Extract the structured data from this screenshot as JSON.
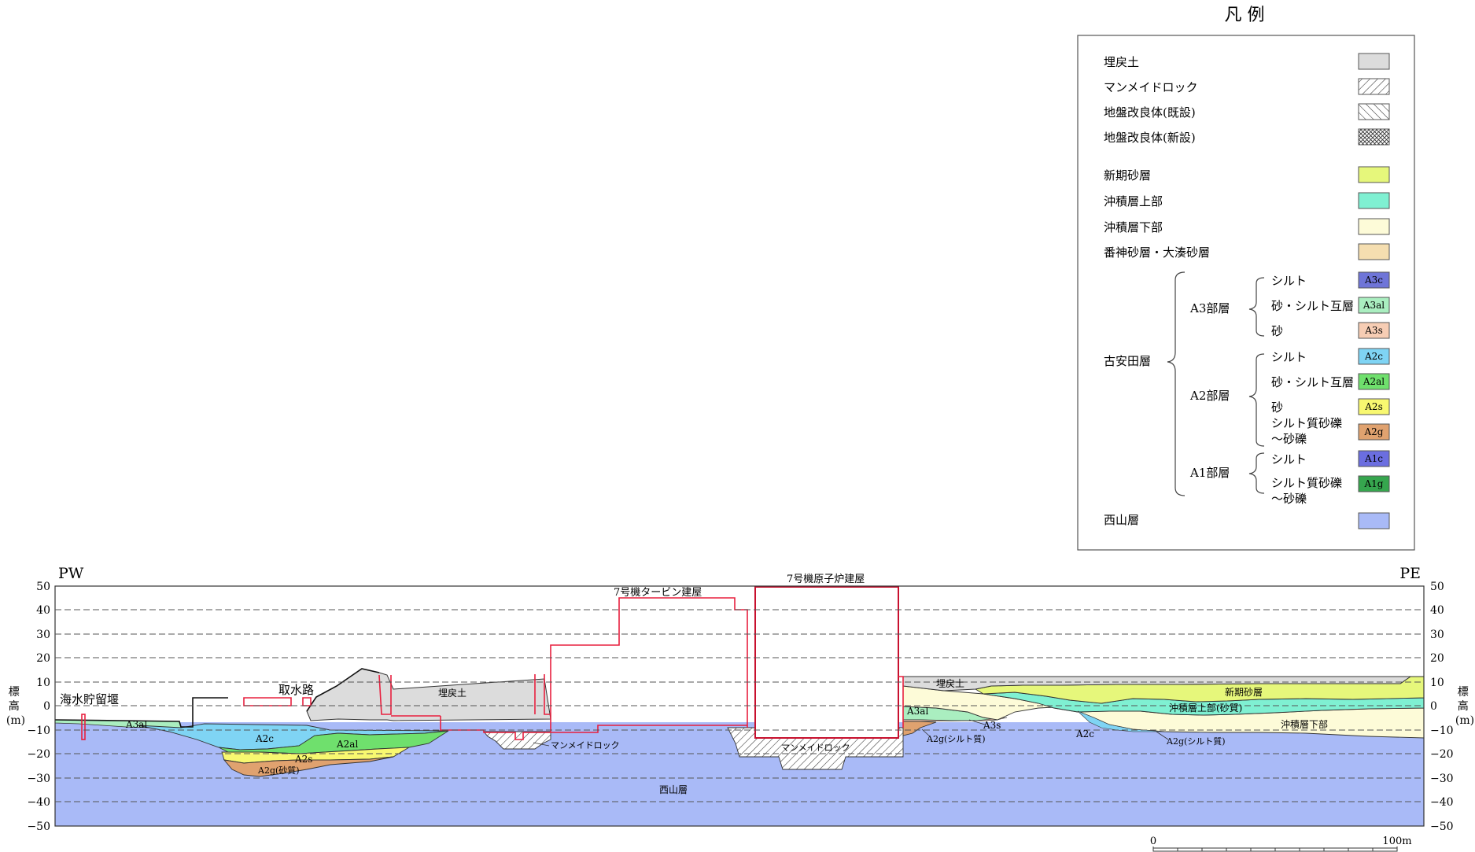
{
  "legend": {
    "title": "凡 例",
    "general_items": [
      {
        "label": "埋戻土",
        "pattern": "fill",
        "color": "#dcdcdc"
      },
      {
        "label": "マンメイドロック",
        "pattern": "hatch-single"
      },
      {
        "label": "地盤改良体(既設)",
        "pattern": "hatch-reverse"
      },
      {
        "label": "地盤改良体(新設)",
        "pattern": "hatch-cross"
      }
    ],
    "layer_items": [
      {
        "label": "新期砂層",
        "color": "#e6f77b"
      },
      {
        "label": "沖積層上部",
        "color": "#7ff0d2"
      },
      {
        "label": "沖積層下部",
        "color": "#fdfbd8"
      },
      {
        "label": "番神砂層・大湊砂層",
        "color": "#f5deb0"
      }
    ],
    "koyasuda": {
      "label": "古安田層",
      "groups": [
        {
          "label": "A3部層",
          "items": [
            {
              "label": "シルト",
              "code": "A3c",
              "color": "#6f75d8"
            },
            {
              "label": "砂・シルト互層",
              "code": "A3al",
              "color": "#aaeec0"
            },
            {
              "label": "砂",
              "code": "A3s",
              "color": "#f7cdb4"
            }
          ]
        },
        {
          "label": "A2部層",
          "items": [
            {
              "label": "シルト",
              "code": "A2c",
              "color": "#7fd4f4"
            },
            {
              "label": "砂・シルト互層",
              "code": "A2al",
              "color": "#6fe06d"
            },
            {
              "label": "砂",
              "code": "A2s",
              "color": "#f8f870"
            },
            {
              "label": "シルト質砂礫\n～砂礫",
              "code": "A2g",
              "color": "#e0a26f"
            }
          ]
        },
        {
          "label": "A1部層",
          "items": [
            {
              "label": "シルト",
              "code": "A1c",
              "color": "#6b6ee0"
            },
            {
              "label": "シルト質砂礫\n～砂礫",
              "code": "A1g",
              "color": "#36a64e"
            }
          ]
        }
      ]
    },
    "bedrock": {
      "label": "西山層",
      "color": "#a9baf7"
    }
  },
  "section": {
    "left_end": "PW",
    "right_end": "PE",
    "y_axis_label": "標\n高\n(m)",
    "y_ticks": [
      50,
      40,
      30,
      20,
      10,
      0,
      -10,
      -20,
      -30,
      -40,
      -50
    ],
    "y_tick_labels": [
      "50",
      "40",
      "30",
      "20",
      "10",
      "0",
      "−10",
      "−20",
      "−30",
      "−40",
      "−50"
    ],
    "structures": {
      "seawater_weir": "海水貯留堰",
      "intake": "取水路",
      "turbine": "7号機タービン建屋",
      "reactor": "7号機原子炉建屋"
    },
    "layer_labels": {
      "backfill_left": "埋戻土",
      "backfill_right": "埋戻土",
      "a3al_left": "A3al",
      "a2c_left": "A2c",
      "a2al_left": "A2al",
      "a2s_left": "A2s",
      "a2g_left": "A2g(砂質)",
      "manmade_1": "マンメイドロック",
      "manmade_2": "マンメイドロック",
      "nishiyama": "西山層",
      "a3al_right": "A3al",
      "a3s_right": "A3s",
      "a2g_right1": "A2g(シルト質)",
      "a2c_right": "A2c",
      "a2g_right2": "A2g(シルト質)",
      "shinki": "新期砂層",
      "chuseki_upper": "沖積層上部(砂質)",
      "chuseki_lower": "沖積層下部"
    },
    "scale_bar": {
      "zero": "0",
      "max": "100m"
    }
  },
  "colors": {
    "structure_outline": "#e8203f",
    "backfill": "#dcdcdc",
    "grid_line": "#555555",
    "bedrock": "#a9baf7"
  }
}
